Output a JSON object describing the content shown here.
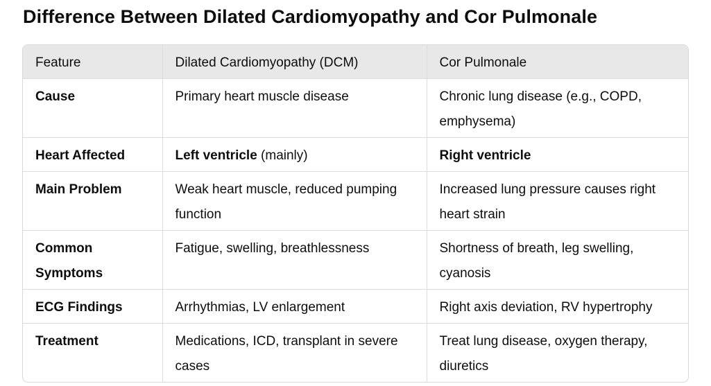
{
  "document": {
    "title": "Difference Between Dilated Cardiomyopathy and Cor Pulmonale"
  },
  "table": {
    "headers": [
      "Feature",
      "Dilated Cardiomyopathy (DCM)",
      "Cor Pulmonale"
    ],
    "rows": [
      {
        "feature": "Cause",
        "dcm": "Primary heart muscle disease",
        "cor": "Chronic lung disease (e.g., COPD, emphysema)"
      },
      {
        "feature": "Heart Affected",
        "dcm_bold": "Left ventricle",
        "dcm_rest": " (mainly)",
        "cor_bold": "Right ventricle"
      },
      {
        "feature": "Main Problem",
        "dcm": "Weak heart muscle, reduced pumping function",
        "cor": "Increased lung pressure causes right heart strain"
      },
      {
        "feature": "Common Symptoms",
        "dcm": "Fatigue, swelling, breathlessness",
        "cor": "Shortness of breath, leg swelling, cyanosis"
      },
      {
        "feature": "ECG Findings",
        "dcm": "Arrhythmias, LV enlargement",
        "cor": "Right axis deviation, RV hypertrophy"
      },
      {
        "feature": "Treatment",
        "dcm": "Medications, ICD, transplant in severe cases",
        "cor": "Treat lung disease, oxygen therapy, diuretics"
      }
    ]
  },
  "colors": {
    "header_background": "#e8e8e8",
    "border": "#d9d9d9",
    "text": "#0d0d0d"
  }
}
